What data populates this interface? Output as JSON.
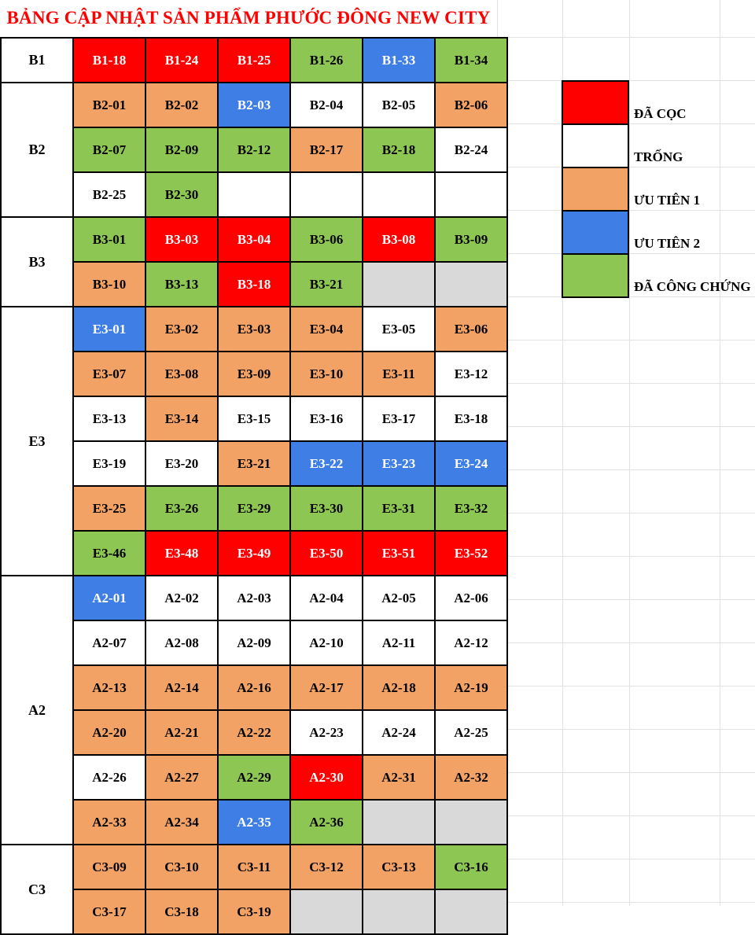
{
  "title": "BẢNG CẬP NHẬT SẢN PHẨM PHƯỚC ĐÔNG NEW CITY",
  "title_color": "#ff0000",
  "statuses": {
    "da_coc": {
      "fill": "#fe0000",
      "text": "#ffffff"
    },
    "trong": {
      "fill": "#ffffff",
      "text": "#000000"
    },
    "uu_tien_1": {
      "fill": "#f2a264",
      "text": "#000000"
    },
    "uu_tien_2": {
      "fill": "#3f7ee5",
      "text": "#ffffff"
    },
    "da_cong_chung": {
      "fill": "#8dc653",
      "text": "#000000"
    },
    "unavailable": {
      "fill": "#d9d9d9",
      "text": "#000000"
    }
  },
  "legend": [
    {
      "status": "da_coc",
      "label": "ĐÃ CỌC"
    },
    {
      "status": "trong",
      "label": "TRỐNG"
    },
    {
      "status": "uu_tien_1",
      "label": "ƯU TIÊN 1"
    },
    {
      "status": "uu_tien_2",
      "label": "ƯU TIÊN 2"
    },
    {
      "status": "da_cong_chung",
      "label": "ĐÃ CÔNG CHỨNG"
    }
  ],
  "sections": [
    {
      "name": "B1",
      "rows": [
        [
          {
            "l": "B1-18",
            "s": "da_coc"
          },
          {
            "l": "B1-24",
            "s": "da_coc"
          },
          {
            "l": "B1-25",
            "s": "da_coc"
          },
          {
            "l": "B1-26",
            "s": "da_cong_chung"
          },
          {
            "l": "B1-33",
            "s": "uu_tien_2"
          },
          {
            "l": "B1-34",
            "s": "da_cong_chung"
          }
        ]
      ]
    },
    {
      "name": "B2",
      "rows": [
        [
          {
            "l": "B2-01",
            "s": "uu_tien_1"
          },
          {
            "l": "B2-02",
            "s": "uu_tien_1"
          },
          {
            "l": "B2-03",
            "s": "uu_tien_2"
          },
          {
            "l": "B2-04",
            "s": "trong"
          },
          {
            "l": "B2-05",
            "s": "trong"
          },
          {
            "l": "B2-06",
            "s": "uu_tien_1"
          }
        ],
        [
          {
            "l": "B2-07",
            "s": "da_cong_chung"
          },
          {
            "l": "B2-09",
            "s": "da_cong_chung"
          },
          {
            "l": "B2-12",
            "s": "da_cong_chung"
          },
          {
            "l": "B2-17",
            "s": "uu_tien_1"
          },
          {
            "l": "B2-18",
            "s": "da_cong_chung"
          },
          {
            "l": "B2-24",
            "s": "trong"
          }
        ],
        [
          {
            "l": "B2-25",
            "s": "trong"
          },
          {
            "l": "B2-30",
            "s": "da_cong_chung"
          },
          {
            "l": "",
            "s": "trong"
          },
          {
            "l": "",
            "s": "trong"
          },
          {
            "l": "",
            "s": "trong"
          },
          {
            "l": "",
            "s": "trong"
          }
        ]
      ]
    },
    {
      "name": "B3",
      "rows": [
        [
          {
            "l": "B3-01",
            "s": "da_cong_chung"
          },
          {
            "l": "B3-03",
            "s": "da_coc"
          },
          {
            "l": "B3-04",
            "s": "da_coc"
          },
          {
            "l": "B3-06",
            "s": "da_cong_chung"
          },
          {
            "l": "B3-08",
            "s": "da_coc"
          },
          {
            "l": "B3-09",
            "s": "da_cong_chung"
          }
        ],
        [
          {
            "l": "B3-10",
            "s": "uu_tien_1"
          },
          {
            "l": "B3-13",
            "s": "da_cong_chung"
          },
          {
            "l": "B3-18",
            "s": "da_coc"
          },
          {
            "l": "B3-21",
            "s": "da_cong_chung"
          },
          {
            "l": "",
            "s": "unavailable"
          },
          {
            "l": "",
            "s": "unavailable"
          }
        ]
      ]
    },
    {
      "name": "E3",
      "rows": [
        [
          {
            "l": "E3-01",
            "s": "uu_tien_2"
          },
          {
            "l": "E3-02",
            "s": "uu_tien_1"
          },
          {
            "l": "E3-03",
            "s": "uu_tien_1"
          },
          {
            "l": "E3-04",
            "s": "uu_tien_1"
          },
          {
            "l": "E3-05",
            "s": "trong"
          },
          {
            "l": "E3-06",
            "s": "uu_tien_1"
          }
        ],
        [
          {
            "l": "E3-07",
            "s": "uu_tien_1"
          },
          {
            "l": "E3-08",
            "s": "uu_tien_1"
          },
          {
            "l": "E3-09",
            "s": "uu_tien_1"
          },
          {
            "l": "E3-10",
            "s": "uu_tien_1"
          },
          {
            "l": "E3-11",
            "s": "uu_tien_1"
          },
          {
            "l": "E3-12",
            "s": "trong"
          }
        ],
        [
          {
            "l": "E3-13",
            "s": "trong"
          },
          {
            "l": "E3-14",
            "s": "uu_tien_1"
          },
          {
            "l": "E3-15",
            "s": "trong"
          },
          {
            "l": "E3-16",
            "s": "trong"
          },
          {
            "l": "E3-17",
            "s": "trong"
          },
          {
            "l": "E3-18",
            "s": "trong"
          }
        ],
        [
          {
            "l": "E3-19",
            "s": "trong"
          },
          {
            "l": "E3-20",
            "s": "trong"
          },
          {
            "l": "E3-21",
            "s": "uu_tien_1"
          },
          {
            "l": "E3-22",
            "s": "uu_tien_2"
          },
          {
            "l": "E3-23",
            "s": "uu_tien_2"
          },
          {
            "l": "E3-24",
            "s": "uu_tien_2"
          }
        ],
        [
          {
            "l": "E3-25",
            "s": "uu_tien_1"
          },
          {
            "l": "E3-26",
            "s": "da_cong_chung"
          },
          {
            "l": "E3-29",
            "s": "da_cong_chung"
          },
          {
            "l": "E3-30",
            "s": "da_cong_chung"
          },
          {
            "l": "E3-31",
            "s": "da_cong_chung"
          },
          {
            "l": "E3-32",
            "s": "da_cong_chung"
          }
        ],
        [
          {
            "l": "E3-46",
            "s": "da_cong_chung"
          },
          {
            "l": "E3-48",
            "s": "da_coc"
          },
          {
            "l": "E3-49",
            "s": "da_coc"
          },
          {
            "l": "E3-50",
            "s": "da_coc"
          },
          {
            "l": "E3-51",
            "s": "da_coc"
          },
          {
            "l": "E3-52",
            "s": "da_coc"
          }
        ]
      ]
    },
    {
      "name": "A2",
      "rows": [
        [
          {
            "l": "A2-01",
            "s": "uu_tien_2"
          },
          {
            "l": "A2-02",
            "s": "trong"
          },
          {
            "l": "A2-03",
            "s": "trong"
          },
          {
            "l": "A2-04",
            "s": "trong"
          },
          {
            "l": "A2-05",
            "s": "trong"
          },
          {
            "l": "A2-06",
            "s": "trong"
          }
        ],
        [
          {
            "l": "A2-07",
            "s": "trong"
          },
          {
            "l": "A2-08",
            "s": "trong"
          },
          {
            "l": "A2-09",
            "s": "trong"
          },
          {
            "l": "A2-10",
            "s": "trong"
          },
          {
            "l": "A2-11",
            "s": "trong"
          },
          {
            "l": "A2-12",
            "s": "trong"
          }
        ],
        [
          {
            "l": "A2-13",
            "s": "uu_tien_1"
          },
          {
            "l": "A2-14",
            "s": "uu_tien_1"
          },
          {
            "l": "A2-16",
            "s": "uu_tien_1"
          },
          {
            "l": "A2-17",
            "s": "uu_tien_1"
          },
          {
            "l": "A2-18",
            "s": "uu_tien_1"
          },
          {
            "l": "A2-19",
            "s": "uu_tien_1"
          }
        ],
        [
          {
            "l": "A2-20",
            "s": "uu_tien_1"
          },
          {
            "l": "A2-21",
            "s": "uu_tien_1"
          },
          {
            "l": "A2-22",
            "s": "uu_tien_1"
          },
          {
            "l": "A2-23",
            "s": "trong"
          },
          {
            "l": "A2-24",
            "s": "trong"
          },
          {
            "l": "A2-25",
            "s": "trong"
          }
        ],
        [
          {
            "l": "A2-26",
            "s": "trong"
          },
          {
            "l": "A2-27",
            "s": "uu_tien_1"
          },
          {
            "l": "A2-29",
            "s": "da_cong_chung"
          },
          {
            "l": "A2-30",
            "s": "da_coc"
          },
          {
            "l": "A2-31",
            "s": "uu_tien_1"
          },
          {
            "l": "A2-32",
            "s": "uu_tien_1"
          }
        ],
        [
          {
            "l": "A2-33",
            "s": "uu_tien_1"
          },
          {
            "l": "A2-34",
            "s": "uu_tien_1"
          },
          {
            "l": "A2-35",
            "s": "uu_tien_2"
          },
          {
            "l": "A2-36",
            "s": "da_cong_chung"
          },
          {
            "l": "",
            "s": "unavailable"
          },
          {
            "l": "",
            "s": "unavailable"
          }
        ]
      ]
    },
    {
      "name": "C3",
      "rows": [
        [
          {
            "l": "C3-09",
            "s": "uu_tien_1"
          },
          {
            "l": "C3-10",
            "s": "uu_tien_1"
          },
          {
            "l": "C3-11",
            "s": "uu_tien_1"
          },
          {
            "l": "C3-12",
            "s": "uu_tien_1"
          },
          {
            "l": "C3-13",
            "s": "uu_tien_1"
          },
          {
            "l": "C3-16",
            "s": "da_cong_chung"
          }
        ],
        [
          {
            "l": "C3-17",
            "s": "uu_tien_1"
          },
          {
            "l": "C3-18",
            "s": "uu_tien_1"
          },
          {
            "l": "C3-19",
            "s": "uu_tien_1"
          },
          {
            "l": "",
            "s": "unavailable"
          },
          {
            "l": "",
            "s": "unavailable"
          },
          {
            "l": "",
            "s": "unavailable"
          }
        ]
      ]
    }
  ]
}
